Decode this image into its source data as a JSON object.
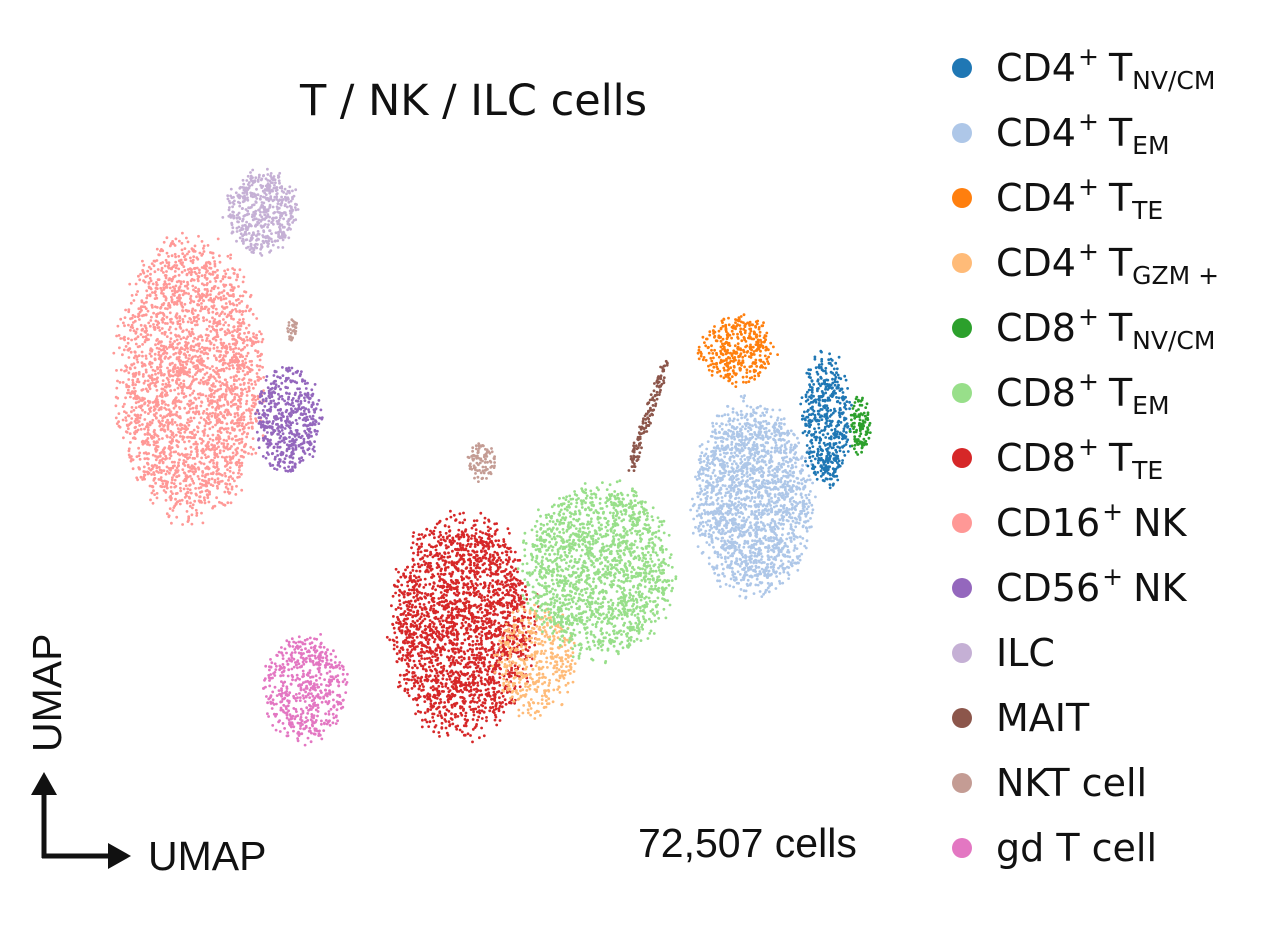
{
  "chart_data": {
    "type": "scatter",
    "title": "T / NK / ILC cells",
    "xlabel": "UMAP",
    "ylabel": "UMAP",
    "annotation": "72,507 cells",
    "legend_position": "right",
    "grid": false,
    "axes_visible": false,
    "series": [
      {
        "name": "CD4+ T NV/CM",
        "base": "CD4",
        "sup": "+",
        "main": "T",
        "sub": "NV/CM",
        "color": "#1f77b4"
      },
      {
        "name": "CD4+ T EM",
        "base": "CD4",
        "sup": "+",
        "main": "T",
        "sub": "EM",
        "color": "#aec7e8"
      },
      {
        "name": "CD4+ T TE",
        "base": "CD4",
        "sup": "+",
        "main": "T",
        "sub": "TE",
        "color": "#ff7f0e"
      },
      {
        "name": "CD4+ T GZM+",
        "base": "CD4",
        "sup": "+",
        "main": "T",
        "sub": "GZM +",
        "color": "#ffbb78"
      },
      {
        "name": "CD8+ T NV/CM",
        "base": "CD8",
        "sup": "+",
        "main": "T",
        "sub": "NV/CM",
        "color": "#2ca02c"
      },
      {
        "name": "CD8+ T EM",
        "base": "CD8",
        "sup": "+",
        "main": "T",
        "sub": "EM",
        "color": "#98df8a"
      },
      {
        "name": "CD8+ T TE",
        "base": "CD8",
        "sup": "+",
        "main": "T",
        "sub": "TE",
        "color": "#d62728"
      },
      {
        "name": "CD16+ NK",
        "base": "CD16",
        "sup": "+",
        "main": "NK",
        "sub": "",
        "color": "#ff9896"
      },
      {
        "name": "CD56+ NK",
        "base": "CD56",
        "sup": "+",
        "main": "NK",
        "sub": "",
        "color": "#9467bd"
      },
      {
        "name": "ILC",
        "base": "ILC",
        "sup": "",
        "main": "",
        "sub": "",
        "color": "#c5b0d5"
      },
      {
        "name": "MAIT",
        "base": "MAIT",
        "sup": "",
        "main": "",
        "sub": "",
        "color": "#8c564b"
      },
      {
        "name": "NKT cell",
        "base": "NKT cell",
        "sup": "",
        "main": "",
        "sub": "",
        "color": "#c49c94"
      },
      {
        "name": "gd T cell",
        "base": "gd T cell",
        "sup": "",
        "main": "",
        "sub": "",
        "color": "#e377c2"
      }
    ]
  }
}
